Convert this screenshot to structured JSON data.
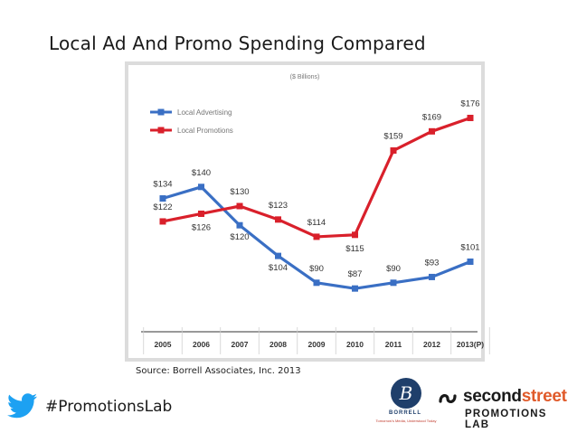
{
  "slide": {
    "title": "Local Ad And Promo Spending Compared",
    "source": "Source: Borrell Associates, Inc. 2013",
    "hashtag": "#PromotionsLab"
  },
  "logos": {
    "borrell": {
      "initial": "B",
      "name": "BORRELL",
      "tagline": "Tomorrow's Media, Understood Today"
    },
    "secondstreet": {
      "word_a": "second",
      "word_b": "street",
      "sub": "PROMOTIONS LAB",
      "accent_color": "#e05a2a"
    }
  },
  "colors": {
    "advertising": "#3a6fc4",
    "promotions": "#d9202b",
    "twitter": "#1da1f2"
  },
  "chart_data": {
    "type": "line",
    "subtitle": "($ Billions)",
    "categories": [
      "2005",
      "2006",
      "2007",
      "2008",
      "2009",
      "2010",
      "2011",
      "2012",
      "2013(P)"
    ],
    "series": [
      {
        "name": "Local Advertising",
        "values": [
          134,
          140,
          120,
          104,
          90,
          87,
          90,
          93,
          101
        ],
        "labels": [
          "$134",
          "$140",
          "$120",
          "$104",
          "$90",
          "$87",
          "$90",
          "$93",
          "$101"
        ]
      },
      {
        "name": "Local Promotions",
        "values": [
          122,
          126,
          130,
          123,
          114,
          115,
          159,
          169,
          176
        ],
        "labels": [
          "$122",
          "$126",
          "$130",
          "$123",
          "$114",
          "$115",
          "$159",
          "$169",
          "$176"
        ]
      }
    ],
    "legend": "top-left",
    "grid": false
  }
}
